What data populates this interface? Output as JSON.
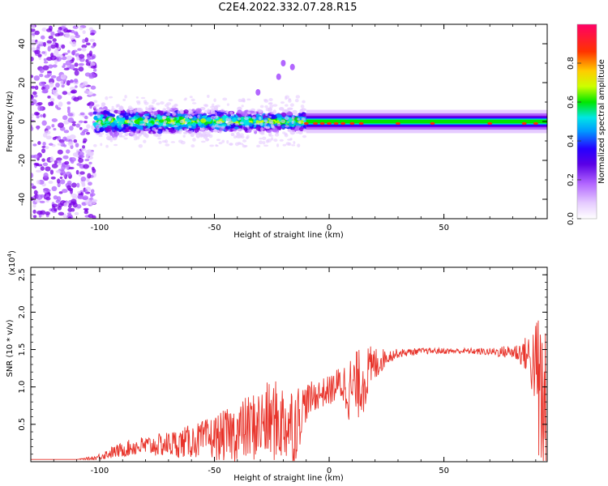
{
  "figure": {
    "title": "C2E4.2022.332.07.28.R15"
  },
  "colors": {
    "snr_line": "#e8332a",
    "spectrogram_background": "#ffffff",
    "colormap": [
      "#ffffff",
      "#e6ccff",
      "#b266ff",
      "#7a00e6",
      "#2600ff",
      "#0099ff",
      "#00e6e6",
      "#00e600",
      "#ccff00",
      "#ffcc00",
      "#ff3300",
      "#ff0066"
    ]
  },
  "chart_data": [
    {
      "type": "heatmap",
      "xlabel": "Height of straight line (km)",
      "ylabel": "Frequency (Hz)",
      "xlim": [
        -130,
        95
      ],
      "ylim": [
        -50,
        50
      ],
      "x_ticks": [
        -100,
        -50,
        0,
        50
      ],
      "y_ticks": [
        -40,
        -20,
        0,
        20,
        40
      ],
      "colorbar": {
        "label": "Normalized spectral amplitude",
        "range": [
          0.0,
          1.0
        ],
        "ticks": [
          "0.0",
          "0.2",
          "0.4",
          "0.6",
          "0.8"
        ]
      },
      "band": {
        "center_hz": 0,
        "noise_region_km": [
          -130,
          -102
        ],
        "scatter_region_km": [
          -102,
          -10
        ],
        "stable_region_km": [
          -10,
          95
        ]
      }
    },
    {
      "type": "line",
      "xlabel": "Height of straight line (km)",
      "ylabel": "SNR (10 * v/v)",
      "y_scale_label": "(x10",
      "y_scale_exp": "4",
      "y_scale_close": ")",
      "xlim": [
        -130,
        95
      ],
      "ylim": [
        0,
        2.6
      ],
      "x_ticks": [
        -100,
        -50,
        0,
        50
      ],
      "y_ticks": [
        0.5,
        1.0,
        1.5,
        2.0,
        2.5
      ],
      "series": [
        {
          "color": "#e8332a",
          "x": [
            -130,
            -110,
            -102,
            -95,
            -85,
            -75,
            -65,
            -55,
            -45,
            -35,
            -25,
            -15,
            -10,
            -5,
            0,
            5,
            10,
            15,
            20,
            25,
            30,
            40,
            50,
            60,
            70,
            80,
            85,
            90,
            93
          ],
          "y": [
            0.03,
            0.03,
            0.05,
            0.12,
            0.2,
            0.22,
            0.25,
            0.3,
            0.35,
            0.45,
            0.55,
            0.5,
            0.8,
            0.9,
            0.95,
            1.05,
            0.95,
            1.1,
            1.3,
            1.4,
            1.45,
            1.48,
            1.48,
            1.48,
            1.47,
            1.47,
            1.45,
            1.3,
            0.5
          ],
          "noise": [
            0.0,
            0.0,
            0.03,
            0.08,
            0.12,
            0.15,
            0.2,
            0.25,
            0.35,
            0.45,
            0.55,
            0.55,
            0.25,
            0.2,
            0.2,
            0.25,
            0.5,
            0.45,
            0.25,
            0.1,
            0.06,
            0.04,
            0.04,
            0.04,
            0.05,
            0.1,
            0.2,
            0.6,
            1.8
          ]
        }
      ]
    }
  ]
}
